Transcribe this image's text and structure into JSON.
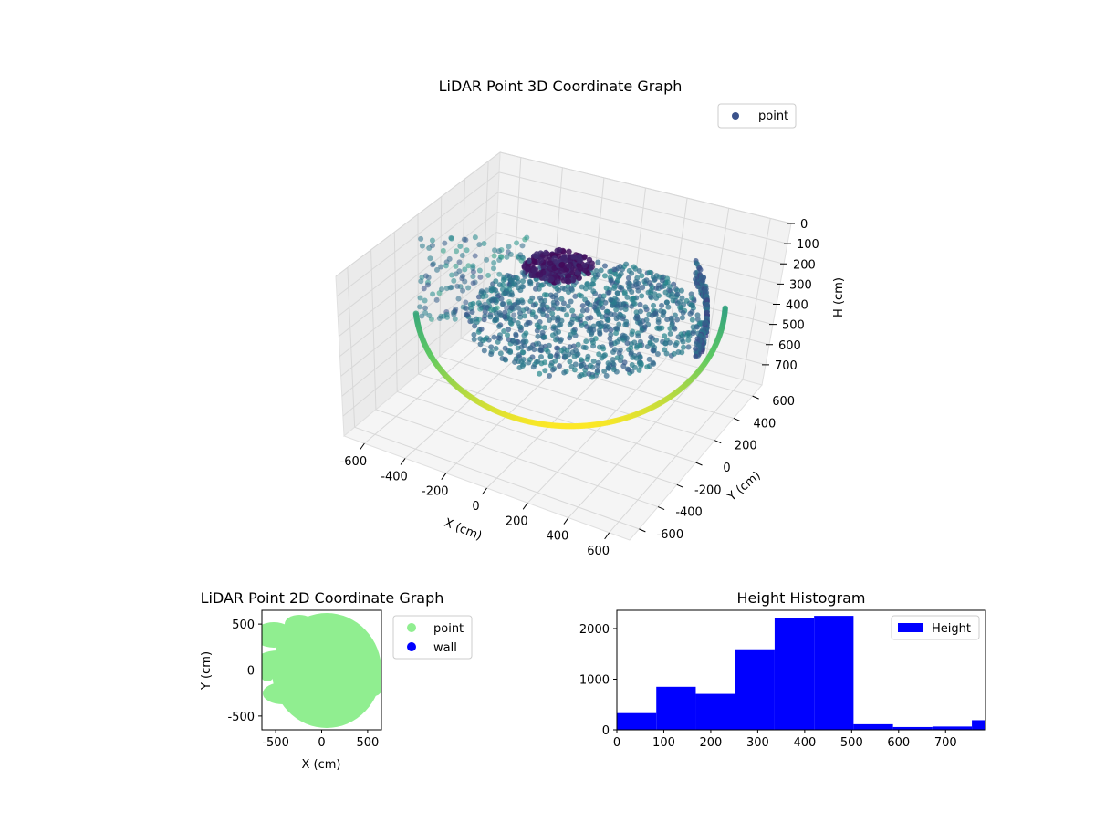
{
  "chart_data": [
    {
      "type": "scatter",
      "projection": "3d",
      "title": "LiDAR Point 3D Coordinate Graph",
      "xlabel": "X (cm)",
      "ylabel": "Y (cm)",
      "zlabel": "H (cm)",
      "xlim": [
        -700,
        700
      ],
      "ylim": [
        -700,
        700
      ],
      "zlim": [
        800,
        0
      ],
      "zaxis_inverted": true,
      "xticks": [
        -600,
        -400,
        -200,
        0,
        200,
        400,
        600
      ],
      "yticks": [
        -600,
        -400,
        -200,
        0,
        200,
        400,
        600
      ],
      "zticks": [
        0,
        100,
        200,
        300,
        400,
        500,
        600,
        700
      ],
      "colormap": "viridis",
      "color_by": "height",
      "grid": true,
      "legend": {
        "position": "top-right",
        "entries": [
          {
            "label": "point",
            "color": "#3b528b"
          }
        ]
      },
      "series": [
        {
          "name": "point"
        }
      ]
    },
    {
      "type": "scatter",
      "title": "LiDAR Point 2D Coordinate Graph",
      "xlabel": "X (cm)",
      "ylabel": "Y (cm)",
      "xlim": [
        -650,
        650
      ],
      "ylim": [
        -650,
        650
      ],
      "xticks": [
        -500,
        0,
        500
      ],
      "yticks": [
        -500,
        0,
        500
      ],
      "legend": {
        "position": "outside-right",
        "entries": [
          {
            "label": "point",
            "color": "#90ee90"
          },
          {
            "label": "wall",
            "color": "#0000ff"
          }
        ]
      },
      "series": [
        {
          "name": "point",
          "color": "#90ee90"
        },
        {
          "name": "wall",
          "color": "#0000ff",
          "values": []
        }
      ]
    },
    {
      "type": "bar",
      "subtype": "histogram",
      "title": "Height Histogram",
      "xlabel": "",
      "ylabel": "",
      "bin_edges": [
        0,
        84,
        168,
        252,
        336,
        420,
        504,
        588,
        672,
        756,
        840
      ],
      "values": [
        330,
        850,
        710,
        1590,
        2210,
        2250,
        110,
        55,
        65,
        190
      ],
      "xlim": [
        0,
        785
      ],
      "ylim": [
        0,
        2360
      ],
      "xticks": [
        0,
        100,
        200,
        300,
        400,
        500,
        600,
        700
      ],
      "yticks": [
        0,
        1000,
        2000
      ],
      "color": "#0000ff",
      "legend": {
        "position": "top-right",
        "entries": [
          {
            "label": "Height",
            "color": "#0000ff"
          }
        ]
      },
      "series": [
        {
          "name": "Height"
        }
      ]
    }
  ]
}
